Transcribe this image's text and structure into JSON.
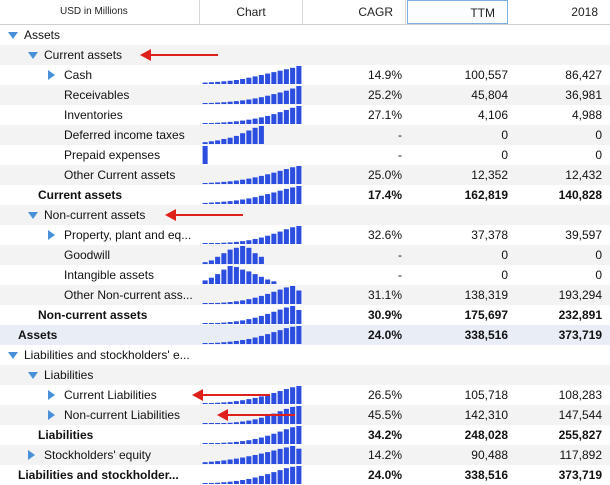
{
  "header": {
    "units": "USD in Millions",
    "columns": [
      "Chart",
      "CAGR",
      "TTM",
      "2018"
    ]
  },
  "colors": {
    "accent": "#4a90d9",
    "bar": "#2b4ee0",
    "arrow": "#e0201a"
  },
  "rows": [
    {
      "label": "Assets",
      "indent": 0,
      "toggle": "down",
      "cagr": "",
      "ttm": "",
      "y2018": "",
      "bold": false,
      "spark": null
    },
    {
      "label": "Current assets",
      "indent": 1,
      "toggle": "down",
      "cagr": "",
      "ttm": "",
      "y2018": "",
      "bold": false,
      "spark": null,
      "arrow": true
    },
    {
      "label": "Cash",
      "indent": 2,
      "toggle": "right",
      "cagr": "14.9%",
      "ttm": "100,557",
      "y2018": "86,427",
      "bold": false,
      "spark": [
        0.08,
        0.1,
        0.12,
        0.15,
        0.18,
        0.22,
        0.28,
        0.35,
        0.42,
        0.5,
        0.58,
        0.66,
        0.74,
        0.82,
        0.9,
        1.0
      ]
    },
    {
      "label": "Receivables",
      "indent": 2,
      "toggle": "",
      "cagr": "25.2%",
      "ttm": "45,804",
      "y2018": "36,981",
      "bold": false,
      "spark": [
        0.05,
        0.06,
        0.08,
        0.1,
        0.13,
        0.16,
        0.2,
        0.25,
        0.31,
        0.38,
        0.46,
        0.55,
        0.64,
        0.74,
        0.86,
        1.0
      ]
    },
    {
      "label": "Inventories",
      "indent": 2,
      "toggle": "",
      "cagr": "27.1%",
      "ttm": "4,106",
      "y2018": "4,988",
      "bold": false,
      "spark": [
        0.04,
        0.05,
        0.07,
        0.09,
        0.12,
        0.15,
        0.19,
        0.24,
        0.3,
        0.37,
        0.45,
        0.55,
        0.66,
        0.78,
        0.9,
        1.0
      ]
    },
    {
      "label": "Deferred income taxes",
      "indent": 2,
      "toggle": "",
      "cagr": "-",
      "ttm": "0",
      "y2018": "0",
      "bold": false,
      "spark": [
        0.1,
        0.15,
        0.2,
        0.28,
        0.35,
        0.45,
        0.6,
        0.75,
        0.9,
        1.0,
        0,
        0,
        0,
        0,
        0,
        0
      ]
    },
    {
      "label": "Prepaid expenses",
      "indent": 2,
      "toggle": "",
      "cagr": "-",
      "ttm": "0",
      "y2018": "0",
      "bold": false,
      "spark": [
        1.0,
        0,
        0,
        0,
        0,
        0,
        0,
        0,
        0,
        0,
        0,
        0,
        0,
        0,
        0,
        0
      ]
    },
    {
      "label": "Other Current assets",
      "indent": 2,
      "toggle": "",
      "cagr": "25.0%",
      "ttm": "12,352",
      "y2018": "12,432",
      "bold": false,
      "spark": [
        0.05,
        0.07,
        0.09,
        0.12,
        0.15,
        0.19,
        0.24,
        0.3,
        0.37,
        0.45,
        0.54,
        0.63,
        0.73,
        0.83,
        0.93,
        1.0
      ]
    },
    {
      "label": "Current assets",
      "indent": 1,
      "toggle": "",
      "cagr": "17.4%",
      "ttm": "162,819",
      "y2018": "140,828",
      "bold": true,
      "spark": [
        0.06,
        0.08,
        0.1,
        0.13,
        0.16,
        0.2,
        0.25,
        0.31,
        0.38,
        0.46,
        0.55,
        0.64,
        0.74,
        0.84,
        0.92,
        1.0
      ]
    },
    {
      "label": "Non-current assets",
      "indent": 1,
      "toggle": "down",
      "cagr": "",
      "ttm": "",
      "y2018": "",
      "bold": false,
      "spark": null,
      "arrow": true
    },
    {
      "label": "Property, plant and eq...",
      "indent": 2,
      "toggle": "right",
      "cagr": "32.6%",
      "ttm": "37,378",
      "y2018": "39,597",
      "bold": false,
      "spark": [
        0.03,
        0.04,
        0.05,
        0.07,
        0.09,
        0.12,
        0.16,
        0.21,
        0.28,
        0.36,
        0.46,
        0.57,
        0.69,
        0.82,
        0.93,
        1.0
      ]
    },
    {
      "label": "Goodwill",
      "indent": 2,
      "toggle": "",
      "cagr": "-",
      "ttm": "0",
      "y2018": "0",
      "bold": false,
      "spark": [
        0.1,
        0.2,
        0.4,
        0.6,
        0.8,
        0.9,
        1.0,
        0.9,
        0.6,
        0.4,
        0,
        0,
        0,
        0,
        0,
        0
      ]
    },
    {
      "label": "Intangible assets",
      "indent": 2,
      "toggle": "",
      "cagr": "-",
      "ttm": "0",
      "y2018": "0",
      "bold": false,
      "spark": [
        0.2,
        0.35,
        0.55,
        0.8,
        1.0,
        0.95,
        0.8,
        0.7,
        0.55,
        0.4,
        0.25,
        0.15,
        0,
        0,
        0,
        0
      ]
    },
    {
      "label": "Other Non-current ass...",
      "indent": 2,
      "toggle": "",
      "cagr": "31.1%",
      "ttm": "138,319",
      "y2018": "193,294",
      "bold": false,
      "spark": [
        0.03,
        0.04,
        0.06,
        0.08,
        0.11,
        0.15,
        0.2,
        0.27,
        0.35,
        0.45,
        0.56,
        0.68,
        0.8,
        0.92,
        1.0,
        0.75
      ]
    },
    {
      "label": "Non-current assets",
      "indent": 1,
      "toggle": "",
      "cagr": "30.9%",
      "ttm": "175,697",
      "y2018": "232,891",
      "bold": true,
      "spark": [
        0.03,
        0.04,
        0.06,
        0.08,
        0.11,
        0.15,
        0.2,
        0.27,
        0.35,
        0.45,
        0.56,
        0.68,
        0.8,
        0.92,
        1.0,
        0.78
      ]
    },
    {
      "label": "Assets",
      "indent": 0,
      "toggle": "",
      "cagr": "24.0%",
      "ttm": "338,516",
      "y2018": "373,719",
      "bold": true,
      "spark": [
        0.04,
        0.05,
        0.07,
        0.1,
        0.13,
        0.17,
        0.22,
        0.28,
        0.36,
        0.45,
        0.55,
        0.66,
        0.77,
        0.88,
        0.96,
        1.0
      ],
      "highlight": true
    },
    {
      "label": "Liabilities and stockholders' e...",
      "indent": 0,
      "toggle": "down",
      "cagr": "",
      "ttm": "",
      "y2018": "",
      "bold": false,
      "spark": null
    },
    {
      "label": "Liabilities",
      "indent": 1,
      "toggle": "down",
      "cagr": "",
      "ttm": "",
      "y2018": "",
      "bold": false,
      "spark": null
    },
    {
      "label": "Current Liabilities",
      "indent": 2,
      "toggle": "right",
      "cagr": "26.5%",
      "ttm": "105,718",
      "y2018": "108,283",
      "bold": false,
      "spark": [
        0.04,
        0.05,
        0.07,
        0.09,
        0.12,
        0.16,
        0.21,
        0.27,
        0.34,
        0.42,
        0.51,
        0.61,
        0.72,
        0.83,
        0.93,
        1.0
      ],
      "arrow": true
    },
    {
      "label": "Non-current Liabilities",
      "indent": 2,
      "toggle": "right",
      "cagr": "45.5%",
      "ttm": "142,310",
      "y2018": "147,544",
      "bold": false,
      "spark": [
        0.02,
        0.03,
        0.04,
        0.05,
        0.07,
        0.1,
        0.14,
        0.19,
        0.26,
        0.35,
        0.46,
        0.58,
        0.71,
        0.84,
        0.95,
        1.0
      ],
      "arrow": true
    },
    {
      "label": "Liabilities",
      "indent": 1,
      "toggle": "",
      "cagr": "34.2%",
      "ttm": "248,028",
      "y2018": "255,827",
      "bold": true,
      "spark": [
        0.03,
        0.04,
        0.05,
        0.07,
        0.09,
        0.12,
        0.16,
        0.21,
        0.28,
        0.36,
        0.46,
        0.57,
        0.69,
        0.82,
        0.93,
        1.0
      ]
    },
    {
      "label": "Stockholders' equity",
      "indent": 1,
      "toggle": "right",
      "cagr": "14.2%",
      "ttm": "90,488",
      "y2018": "117,892",
      "bold": false,
      "spark": [
        0.1,
        0.13,
        0.16,
        0.2,
        0.25,
        0.3,
        0.36,
        0.43,
        0.5,
        0.58,
        0.66,
        0.75,
        0.84,
        0.92,
        1.0,
        0.85
      ]
    },
    {
      "label": "Liabilities and stockholder...",
      "indent": 0,
      "toggle": "",
      "cagr": "24.0%",
      "ttm": "338,516",
      "y2018": "373,719",
      "bold": true,
      "spark": [
        0.04,
        0.05,
        0.07,
        0.1,
        0.13,
        0.17,
        0.22,
        0.28,
        0.36,
        0.45,
        0.55,
        0.66,
        0.77,
        0.88,
        0.96,
        1.0
      ]
    }
  ]
}
